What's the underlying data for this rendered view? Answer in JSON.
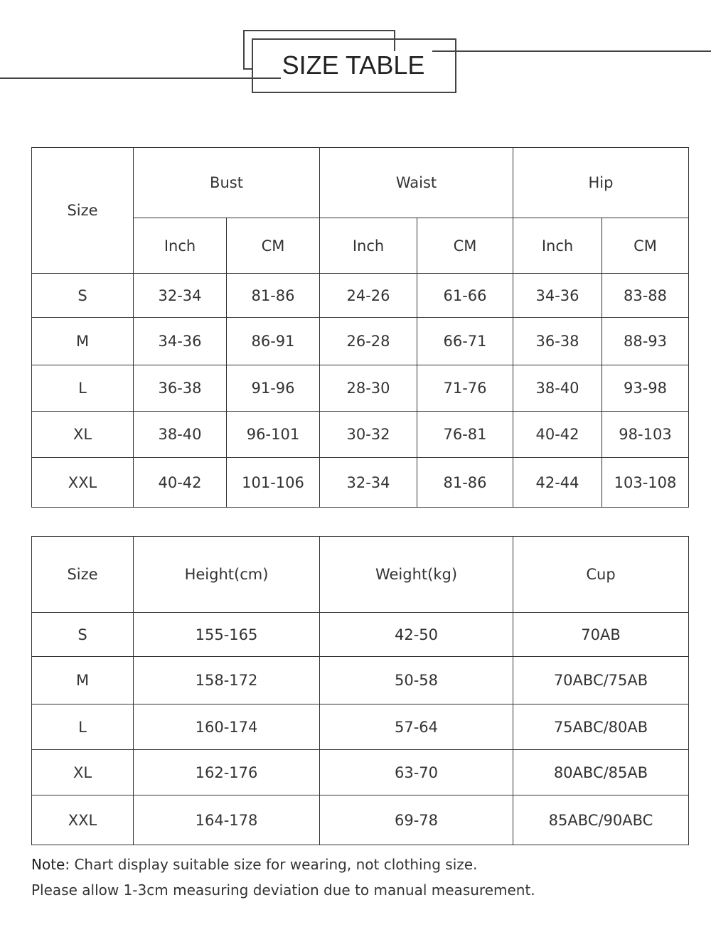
{
  "header": {
    "title": "SIZE TABLE"
  },
  "measurements_table": {
    "size_label": "Size",
    "groups": [
      "Bust",
      "Waist",
      "Hip"
    ],
    "units": [
      "Inch",
      "CM",
      "Inch",
      "CM",
      "Inch",
      "CM"
    ],
    "rows": [
      [
        "S",
        "32-34",
        "81-86",
        "24-26",
        "61-66",
        "34-36",
        "83-88"
      ],
      [
        "M",
        "34-36",
        "86-91",
        "26-28",
        "66-71",
        "36-38",
        "88-93"
      ],
      [
        "L",
        "36-38",
        "91-96",
        "28-30",
        "71-76",
        "38-40",
        "93-98"
      ],
      [
        "XL",
        "38-40",
        "96-101",
        "30-32",
        "76-81",
        "40-42",
        "98-103"
      ],
      [
        "XXL",
        "40-42",
        "101-106",
        "32-34",
        "81-86",
        "42-44",
        "103-108"
      ]
    ]
  },
  "fit_table": {
    "headers": [
      "Size",
      "Height(cm)",
      "Weight(kg)",
      "Cup"
    ],
    "rows": [
      [
        "S",
        "155-165",
        "42-50",
        "70AB"
      ],
      [
        "M",
        "158-172",
        "50-58",
        "70ABC/75AB"
      ],
      [
        "L",
        "160-174",
        "57-64",
        "75ABC/80AB"
      ],
      [
        "XL",
        "162-176",
        "63-70",
        "80ABC/85AB"
      ],
      [
        "XXL",
        "164-178",
        "69-78",
        "85ABC/90ABC"
      ]
    ]
  },
  "notes": {
    "label": "Note:",
    "line1": "Chart display suitable size for wearing, not clothing size.",
    "line2": "Please allow 1-3cm measuring deviation due to manual measurement."
  }
}
